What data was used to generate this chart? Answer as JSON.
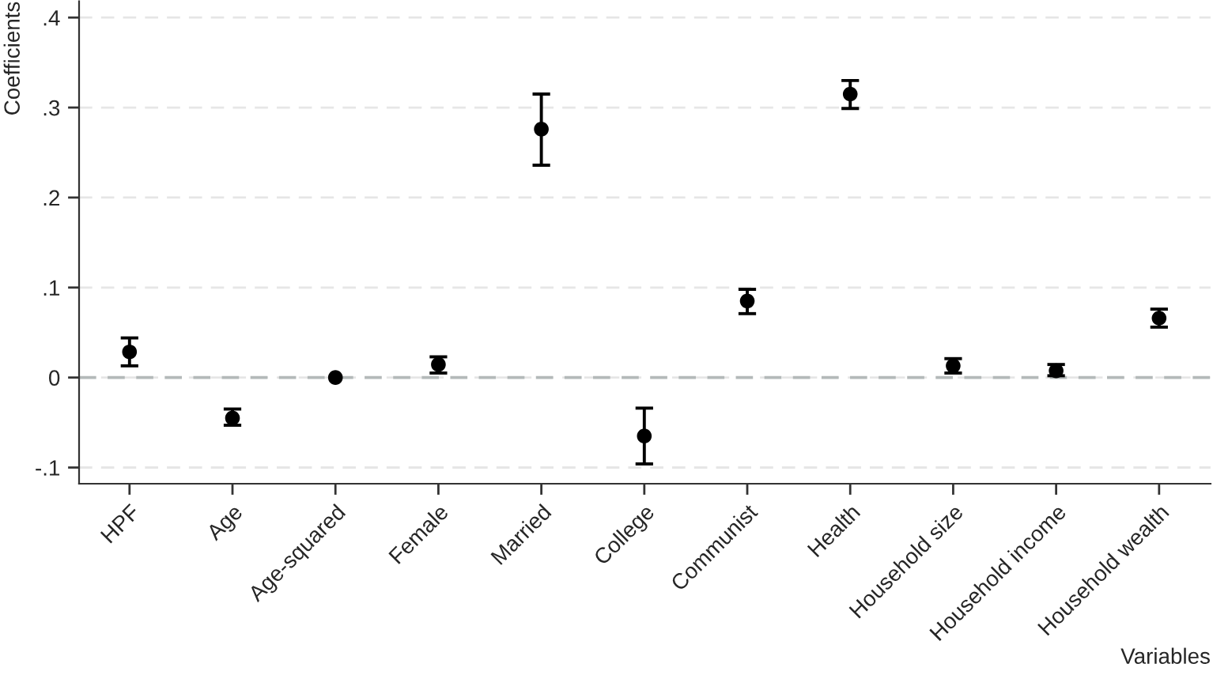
{
  "chart_data": {
    "type": "scatter",
    "xlabel": "Variables",
    "ylabel": "Coefficients",
    "categories": [
      "HPF",
      "Age",
      "Age-squared",
      "Female",
      "Married",
      "College",
      "Communist",
      "Health",
      "Household size",
      "Household income",
      "Household wealth"
    ],
    "series": [
      {
        "color": "#000000",
        "values": [
          0.0285,
          -0.045,
          0.0,
          0.0145,
          0.276,
          -0.065,
          0.085,
          0.315,
          0.013,
          0.0075,
          0.066
        ],
        "errors": [
          [
            0.013,
            0.044
          ],
          [
            -0.053,
            -0.035
          ],
          null,
          [
            0.005,
            0.023
          ],
          [
            0.236,
            0.315
          ],
          [
            -0.096,
            -0.034
          ],
          [
            0.071,
            0.098
          ],
          [
            0.299,
            0.33
          ],
          [
            0.005,
            0.021
          ],
          [
            0.002,
            0.0145
          ],
          [
            0.056,
            0.076
          ]
        ]
      }
    ],
    "ylim": [
      -0.118,
      0.418
    ],
    "yticks": [
      {
        "value": -0.1,
        "label": "-.1"
      },
      0,
      {
        "value": 0.1,
        "label": ".1"
      },
      {
        "value": 0.2,
        "label": ".2"
      },
      {
        "value": 0.3,
        "label": ".3"
      },
      {
        "value": 0.4,
        "label": ".4"
      }
    ],
    "ref_lines": [
      {
        "axis": "y",
        "value": 0,
        "color": "#b4b9b9",
        "line_style": "dashed"
      }
    ],
    "grid": "y",
    "marker": "circle"
  }
}
